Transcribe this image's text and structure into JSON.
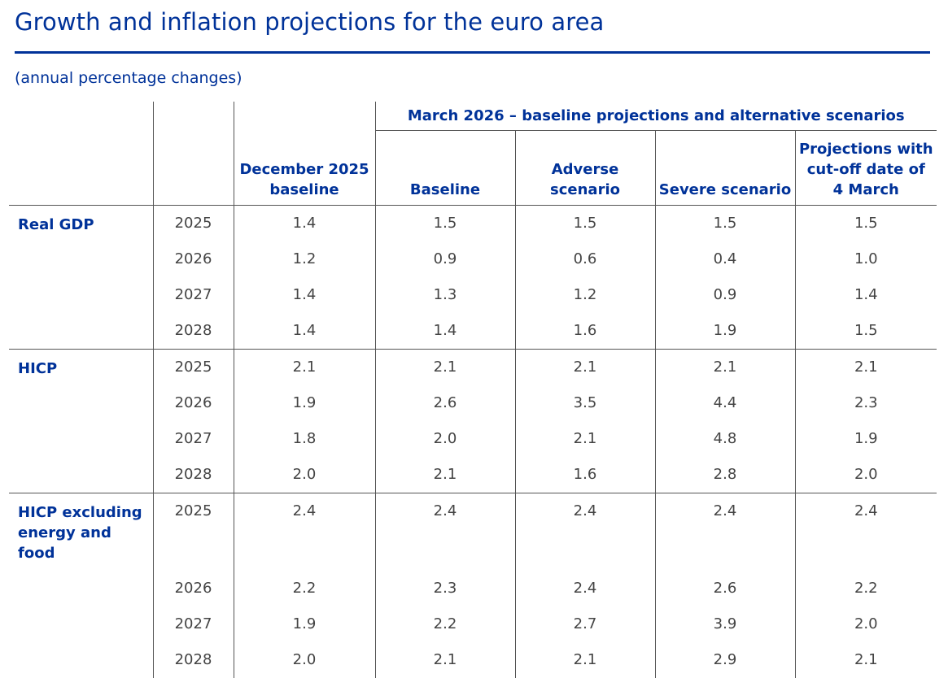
{
  "title": "Growth and inflation projections for the euro area",
  "subtitle": "(annual percentage changes)",
  "header": {
    "group_label": "March 2026 – baseline projections and alternative scenarios",
    "col_december": [
      "December 2025",
      "baseline"
    ],
    "col_baseline": "Baseline",
    "col_adverse": [
      "Adverse",
      "scenario"
    ],
    "col_severe": "Severe scenario",
    "col_cutoff": [
      "Projections with",
      "cut-off date of",
      "4 March"
    ]
  },
  "sections": [
    {
      "label": [
        "Real GDP"
      ],
      "rows": [
        {
          "year": "2025",
          "values": [
            "1.4",
            "1.5",
            "1.5",
            "1.5",
            "1.5"
          ]
        },
        {
          "year": "2026",
          "values": [
            "1.2",
            "0.9",
            "0.6",
            "0.4",
            "1.0"
          ]
        },
        {
          "year": "2027",
          "values": [
            "1.4",
            "1.3",
            "1.2",
            "0.9",
            "1.4"
          ]
        },
        {
          "year": "2028",
          "values": [
            "1.4",
            "1.4",
            "1.6",
            "1.9",
            "1.5"
          ]
        }
      ]
    },
    {
      "label": [
        "HICP"
      ],
      "rows": [
        {
          "year": "2025",
          "values": [
            "2.1",
            "2.1",
            "2.1",
            "2.1",
            "2.1"
          ]
        },
        {
          "year": "2026",
          "values": [
            "1.9",
            "2.6",
            "3.5",
            "4.4",
            "2.3"
          ]
        },
        {
          "year": "2027",
          "values": [
            "1.8",
            "2.0",
            "2.1",
            "4.8",
            "1.9"
          ]
        },
        {
          "year": "2028",
          "values": [
            "2.0",
            "2.1",
            "1.6",
            "2.8",
            "2.0"
          ]
        }
      ]
    },
    {
      "label": [
        "HICP excluding",
        "energy and",
        "food"
      ],
      "rows": [
        {
          "year": "2025",
          "values": [
            "2.4",
            "2.4",
            "2.4",
            "2.4",
            "2.4"
          ]
        },
        {
          "year": "2026",
          "values": [
            "2.2",
            "2.3",
            "2.4",
            "2.6",
            "2.2"
          ]
        },
        {
          "year": "2027",
          "values": [
            "1.9",
            "2.2",
            "2.7",
            "3.9",
            "2.0"
          ]
        },
        {
          "year": "2028",
          "values": [
            "2.0",
            "2.1",
            "2.1",
            "2.9",
            "2.1"
          ]
        }
      ]
    }
  ]
}
